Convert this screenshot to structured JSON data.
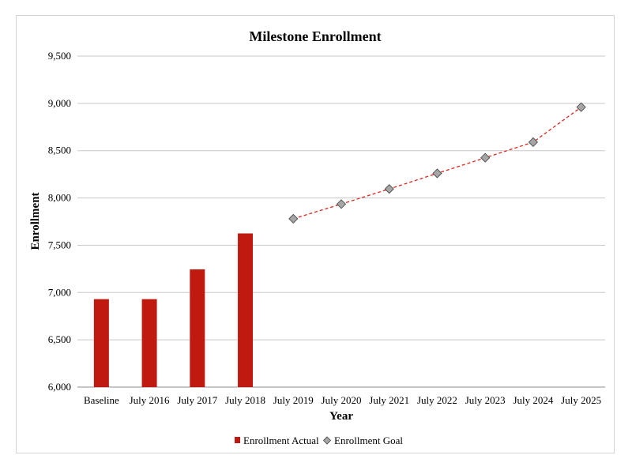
{
  "chart_data": {
    "type": "bar",
    "title": "Milestone Enrollment",
    "xlabel": "Year",
    "ylabel": "Enrollment",
    "ylim": [
      6000,
      9500
    ],
    "ytick_step": 500,
    "yticks": [
      "6,000",
      "6,500",
      "7,000",
      "7,500",
      "8,000",
      "8,500",
      "9,000",
      "9,500"
    ],
    "grid": true,
    "legend_position": "bottom",
    "categories": [
      "Baseline",
      "July 2016",
      "July 2017",
      "July 2018",
      "July 2019",
      "July 2020",
      "July 2021",
      "July 2022",
      "July 2023",
      "July 2024",
      "July 2025"
    ],
    "series": [
      {
        "name": "Enrollment Actual",
        "kind": "bar",
        "color": "#c0190f",
        "values": [
          6930,
          6930,
          7245,
          7625,
          null,
          null,
          null,
          null,
          null,
          null,
          null
        ]
      },
      {
        "name": "Enrollment Goal",
        "kind": "line",
        "marker": "diamond",
        "color": "#d9261c",
        "marker_color": "#a6a6a6",
        "line_style": "dashed",
        "values": [
          null,
          null,
          null,
          null,
          7780,
          7935,
          8095,
          8260,
          8425,
          8590,
          8960
        ]
      }
    ]
  }
}
